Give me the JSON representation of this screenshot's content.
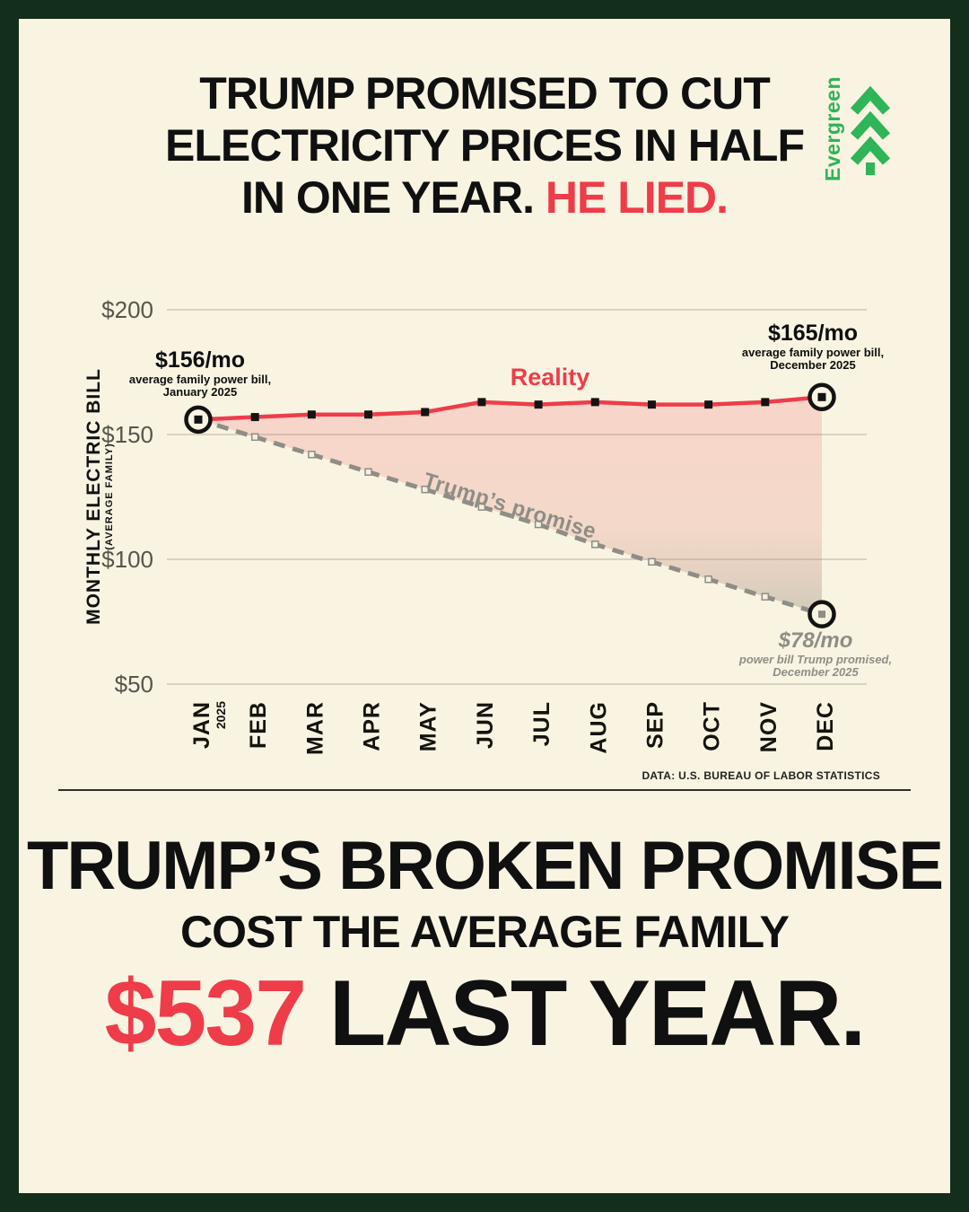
{
  "header": {
    "title_line1": "TRUMP PROMISED TO CUT",
    "title_line2": "ELECTRICITY PRICES IN HALF",
    "title_line3_black": "IN ONE YEAR.",
    "title_line3_red": "HE LIED.",
    "logo_text": "Evergreen"
  },
  "chart_data": {
    "type": "line",
    "ylabel": "MONTHLY ELECTRIC BILL",
    "ylabel_sub": "(AVERAGE FAMILY)",
    "ylim": [
      50,
      200
    ],
    "yticks": [
      200,
      150,
      100,
      50
    ],
    "ytick_prefix": "$",
    "grid": true,
    "categories": [
      "JAN",
      "FEB",
      "MAR",
      "APR",
      "MAY",
      "JUN",
      "JUL",
      "AUG",
      "SEP",
      "OCT",
      "NOV",
      "DEC"
    ],
    "jan_year": "2025",
    "series": [
      {
        "name": "Reality",
        "style": "solid",
        "color": "#ef3c49",
        "values": [
          156,
          157,
          158,
          158,
          159,
          163,
          162,
          163,
          162,
          162,
          163,
          165
        ]
      },
      {
        "name": "Trump’s promise",
        "style": "dashed",
        "color": "#8e8d86",
        "values": [
          156,
          149,
          142,
          135,
          128,
          121,
          114,
          106,
          99,
          92,
          85,
          78
        ]
      }
    ],
    "annotations": {
      "start": {
        "value": "$156/mo",
        "line1": "average family power bill,",
        "line2": "January 2025"
      },
      "reality_end": {
        "value": "$165/mo",
        "line1": "average family power bill,",
        "line2": "December 2025"
      },
      "promise_end": {
        "value": "$78/mo",
        "line1": "power bill Trump promised,",
        "line2": "December 2025"
      },
      "reality_label": "Reality",
      "promise_label": "Trump’s promise"
    },
    "source": "DATA: U.S. BUREAU OF LABOR STATISTICS"
  },
  "footer": {
    "line1": "TRUMP’S BROKEN PROMISE",
    "line2": "COST THE AVERAGE FAMILY",
    "amount": "$537",
    "line3_rest": " LAST YEAR."
  },
  "colors": {
    "background": "#f9f4e2",
    "border_green": "#142e1c",
    "accent_red": "#ef3c49",
    "promise_gray": "#8e8d86",
    "logo_green": "#2fb457"
  }
}
